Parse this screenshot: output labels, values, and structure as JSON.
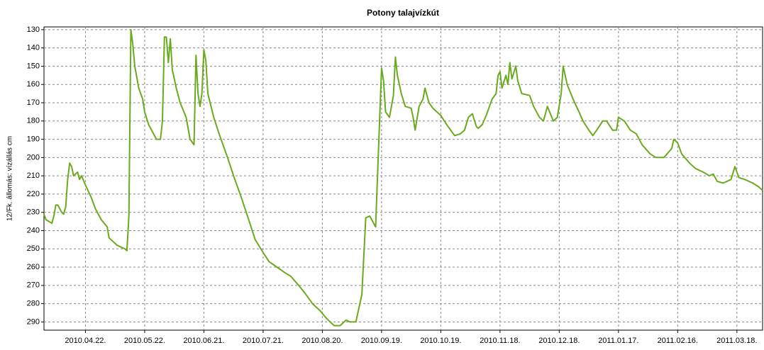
{
  "chart_data": {
    "type": "line",
    "title": "Potony talajvízkút",
    "y_label": "12/Fk. állomás: vízállás cm",
    "color": "#6aaa1e",
    "grid": true,
    "xlim": [
      "2010-04-01",
      "2011-03-31"
    ],
    "xticks": [
      {
        "value": "2010-04-22",
        "label": "2010.04.22."
      },
      {
        "value": "2010-05-22",
        "label": "2010.05.22."
      },
      {
        "value": "2010-06-21",
        "label": "2010.06.21."
      },
      {
        "value": "2010-07-21",
        "label": "2010.07.21."
      },
      {
        "value": "2010-08-20",
        "label": "2010.08.20."
      },
      {
        "value": "2010-09-19",
        "label": "2010.09.19."
      },
      {
        "value": "2010-10-19",
        "label": "2010.10.19."
      },
      {
        "value": "2010-11-18",
        "label": "2010.11.18."
      },
      {
        "value": "2010-12-18",
        "label": "2010.12.18."
      },
      {
        "value": "2011-01-17",
        "label": "2011.01.17."
      },
      {
        "value": "2011-02-16",
        "label": "2011.02.16."
      },
      {
        "value": "2011-03-18",
        "label": "2011.03.18."
      }
    ],
    "ylim": [
      294.5,
      128.5
    ],
    "yticks": [
      130,
      140,
      150,
      160,
      170,
      180,
      190,
      200,
      210,
      220,
      230,
      240,
      250,
      260,
      270,
      280,
      290
    ],
    "x": [
      "2010-04-01",
      "2010-04-02",
      "2010-04-05",
      "2010-04-06",
      "2010-04-07",
      "2010-04-08",
      "2010-04-10",
      "2010-04-11",
      "2010-04-12",
      "2010-04-13",
      "2010-04-14",
      "2010-04-15",
      "2010-04-16",
      "2010-04-18",
      "2010-04-19",
      "2010-04-20",
      "2010-04-22",
      "2010-04-25",
      "2010-04-27",
      "2010-04-30",
      "2010-05-03",
      "2010-05-04",
      "2010-05-08",
      "2010-05-12",
      "2010-05-13",
      "2010-05-14",
      "2010-05-15",
      "2010-05-16",
      "2010-05-17",
      "2010-05-19",
      "2010-05-21",
      "2010-05-22",
      "2010-05-24",
      "2010-05-28",
      "2010-05-30",
      "2010-05-31",
      "2010-06-01",
      "2010-06-02",
      "2010-06-03",
      "2010-06-04",
      "2010-06-05",
      "2010-06-07",
      "2010-06-09",
      "2010-06-12",
      "2010-06-14",
      "2010-06-16",
      "2010-06-17",
      "2010-06-18",
      "2010-06-19",
      "2010-06-20",
      "2010-06-21",
      "2010-06-22",
      "2010-06-23",
      "2010-06-26",
      "2010-06-29",
      "2010-07-03",
      "2010-07-06",
      "2010-07-10",
      "2010-07-14",
      "2010-07-17",
      "2010-07-21",
      "2010-07-24",
      "2010-07-28",
      "2010-08-01",
      "2010-08-04",
      "2010-08-08",
      "2010-08-11",
      "2010-08-15",
      "2010-08-19",
      "2010-08-22",
      "2010-08-26",
      "2010-08-29",
      "2010-09-01",
      "2010-09-03",
      "2010-09-06",
      "2010-09-09",
      "2010-09-11",
      "2010-09-13",
      "2010-09-16",
      "2010-09-18",
      "2010-09-19",
      "2010-09-20",
      "2010-09-21",
      "2010-09-23",
      "2010-09-25",
      "2010-09-26",
      "2010-09-27",
      "2010-09-29",
      "2010-10-01",
      "2010-10-04",
      "2010-10-05",
      "2010-10-06",
      "2010-10-08",
      "2010-10-10",
      "2010-10-11",
      "2010-10-13",
      "2010-10-15",
      "2010-10-19",
      "2010-10-22",
      "2010-10-26",
      "2010-10-29",
      "2010-10-31",
      "2010-11-02",
      "2010-11-04",
      "2010-11-06",
      "2010-11-07",
      "2010-11-09",
      "2010-11-11",
      "2010-11-14",
      "2010-11-16",
      "2010-11-17",
      "2010-11-18",
      "2010-11-19",
      "2010-11-21",
      "2010-11-22",
      "2010-11-23",
      "2010-11-24",
      "2010-11-26",
      "2010-11-27",
      "2010-11-29",
      "2010-12-03",
      "2010-12-05",
      "2010-12-08",
      "2010-12-10",
      "2010-12-12",
      "2010-12-15",
      "2010-12-17",
      "2010-12-19",
      "2010-12-20",
      "2010-12-21",
      "2010-12-22",
      "2010-12-25",
      "2010-12-28",
      "2010-12-30",
      "2011-01-02",
      "2011-01-04",
      "2011-01-06",
      "2011-01-09",
      "2011-01-11",
      "2011-01-14",
      "2011-01-16",
      "2011-01-17",
      "2011-01-20",
      "2011-01-23",
      "2011-01-26",
      "2011-01-29",
      "2011-02-02",
      "2011-02-05",
      "2011-02-09",
      "2011-02-13",
      "2011-02-14",
      "2011-02-16",
      "2011-02-18",
      "2011-02-22",
      "2011-02-25",
      "2011-03-01",
      "2011-03-04",
      "2011-03-06",
      "2011-03-08",
      "2011-03-11",
      "2011-03-13",
      "2011-03-15",
      "2011-03-17",
      "2011-03-19",
      "2011-03-22",
      "2011-03-26",
      "2011-03-29",
      "2011-03-31"
    ],
    "values": [
      231,
      234,
      236,
      232,
      226,
      226,
      230,
      231,
      227,
      212,
      203,
      205,
      210,
      208,
      212,
      210,
      215,
      222,
      228,
      234,
      238,
      244,
      248,
      250,
      251,
      232,
      130,
      138,
      150,
      162,
      168,
      175,
      182,
      190,
      190,
      180,
      134,
      134,
      148,
      135,
      152,
      162,
      170,
      178,
      190,
      193,
      144,
      165,
      172,
      165,
      141,
      147,
      165,
      178,
      188,
      200,
      210,
      222,
      235,
      245,
      252,
      257,
      260,
      263,
      265,
      270,
      274,
      280,
      284,
      288,
      292,
      292,
      289,
      290,
      290,
      275,
      233,
      232,
      238,
      180,
      151,
      158,
      175,
      178,
      166,
      145,
      155,
      165,
      172,
      173,
      178,
      185,
      172,
      168,
      162,
      170,
      173,
      177,
      182,
      188,
      187,
      185,
      178,
      176,
      183,
      184,
      182,
      177,
      168,
      165,
      155,
      153,
      162,
      155,
      160,
      148,
      157,
      150,
      158,
      165,
      166,
      172,
      178,
      180,
      172,
      180,
      178,
      165,
      150,
      155,
      160,
      168,
      175,
      180,
      185,
      188,
      185,
      180,
      180,
      185,
      185,
      178,
      180,
      185,
      187,
      193,
      198,
      200,
      200,
      195,
      190,
      192,
      198,
      203,
      206,
      208,
      210,
      209,
      213,
      214,
      213,
      212,
      205,
      211,
      212,
      214,
      216,
      218
    ]
  }
}
